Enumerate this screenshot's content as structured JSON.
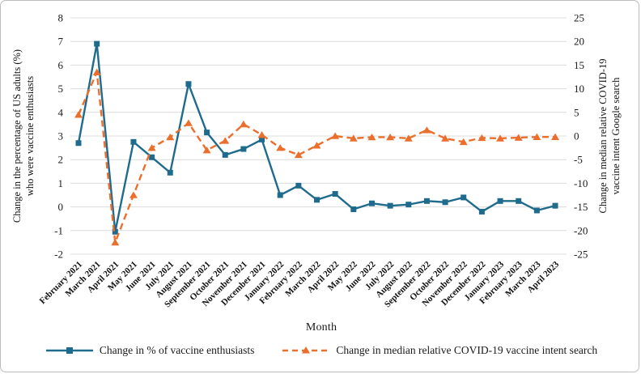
{
  "chart_data": {
    "type": "line",
    "title": "",
    "xlabel": "Month",
    "grid": "horizontal",
    "legend_position": "bottom",
    "categories": [
      "February 2021",
      "March 2021",
      "April 2021",
      "May 2021",
      "June 2021",
      "July 2021",
      "August 2021",
      "September 2021",
      "October 2021",
      "November 2021",
      "December 2021",
      "January 2022",
      "February 2022",
      "March 2022",
      "April 2022",
      "May 2022",
      "June 2022",
      "July 2022",
      "August 2022",
      "September 2022",
      "October 2022",
      "November 2022",
      "December 2022",
      "January 2023",
      "February 2023",
      "March 2023",
      "April 2023"
    ],
    "left_axis": {
      "title_lines": [
        "Change in the percentage of US adults (%)",
        "who were vaccine enthusiasts"
      ],
      "min": -2,
      "max": 8,
      "step": 1,
      "ticks": [
        8,
        7,
        6,
        5,
        4,
        3,
        2,
        1,
        0,
        -1,
        -2
      ]
    },
    "right_axis": {
      "title_lines": [
        "Change in median relative COVID-19",
        "vaccine intent Google search"
      ],
      "min": -25,
      "max": 25,
      "step": 5,
      "ticks": [
        25,
        20,
        15,
        10,
        5,
        0,
        -5,
        -10,
        -15,
        -20,
        -25
      ]
    },
    "series": [
      {
        "name": "Change in % of vaccine enthusiasts",
        "axis": "left",
        "color": "#1F6B8D",
        "line": "solid",
        "marker": "square",
        "values": [
          2.7,
          6.9,
          -1.05,
          2.75,
          2.1,
          1.45,
          5.2,
          3.15,
          2.2,
          2.45,
          2.85,
          0.5,
          0.9,
          0.3,
          0.55,
          -0.1,
          0.15,
          0.05,
          0.1,
          0.25,
          0.2,
          0.4,
          -0.2,
          0.25,
          0.25,
          -0.15,
          0.05
        ]
      },
      {
        "name": "Change in median relative COVID-19 vaccine intent search",
        "axis": "right",
        "color": "#EC6E2D",
        "line": "dashed",
        "marker": "triangle",
        "values": [
          4.5,
          13.5,
          -22.5,
          -12.5,
          -2.5,
          -0.25,
          2.75,
          -3,
          -1,
          2.5,
          0.25,
          -2.5,
          -4,
          -2,
          0,
          -0.5,
          -0.25,
          -0.25,
          -0.5,
          1.25,
          -0.5,
          -1.25,
          -0.4,
          -0.5,
          -0.35,
          -0.2,
          -0.2
        ]
      }
    ]
  },
  "colors": {
    "grid": "#dcdcdc",
    "text": "#1a1a1a",
    "border": "#bdbdbd",
    "background": "#ffffff"
  }
}
